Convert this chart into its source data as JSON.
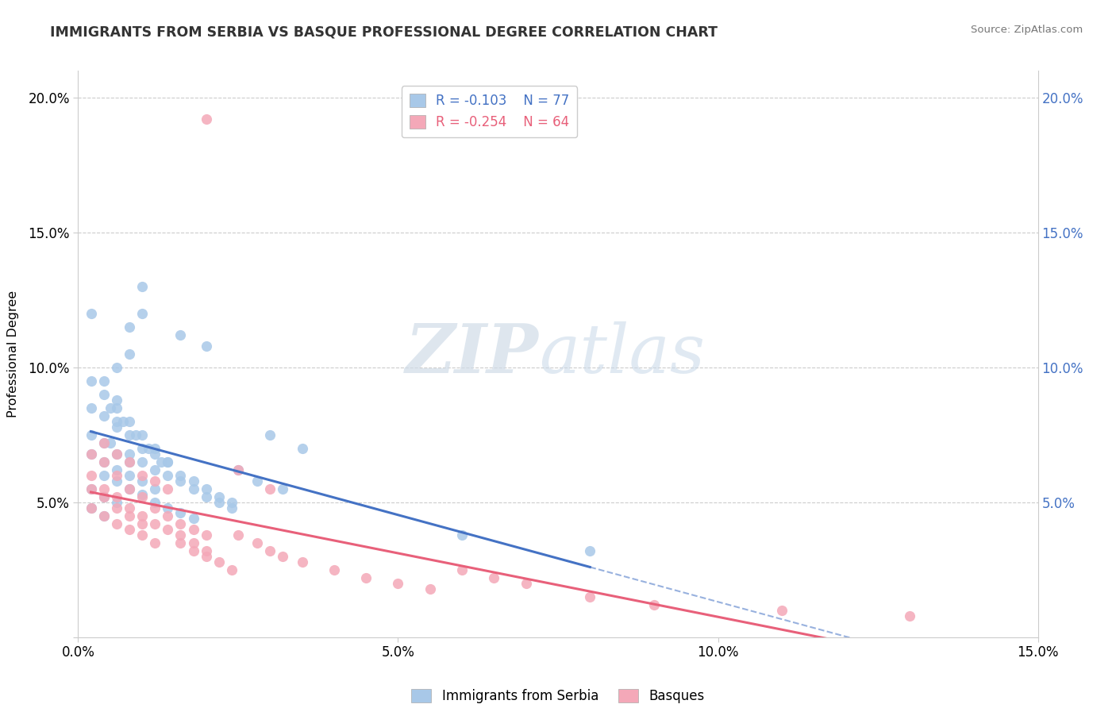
{
  "title": "IMMIGRANTS FROM SERBIA VS BASQUE PROFESSIONAL DEGREE CORRELATION CHART",
  "source": "Source: ZipAtlas.com",
  "ylabel": "Professional Degree",
  "legend_labels": [
    "Immigrants from Serbia",
    "Basques"
  ],
  "serbia_R": "-0.103",
  "serbia_N": "77",
  "basque_R": "-0.254",
  "basque_N": "64",
  "serbia_color": "#a8c8e8",
  "basque_color": "#f4a8b8",
  "serbia_line_color": "#4472c4",
  "basque_line_color": "#e8607a",
  "xlim": [
    0.0,
    0.15
  ],
  "ylim": [
    0.0,
    0.21
  ],
  "xtick_vals": [
    0.0,
    0.05,
    0.1,
    0.15
  ],
  "xtick_labels": [
    "0.0%",
    "5.0%",
    "10.0%",
    "15.0%"
  ],
  "ytick_vals": [
    0.0,
    0.05,
    0.1,
    0.15,
    0.2
  ],
  "ytick_labels_right": [
    "5.0%",
    "10.0%",
    "15.0%",
    "20.0%"
  ],
  "ytick_vals_right": [
    0.05,
    0.1,
    0.15,
    0.2
  ],
  "watermark_zip": "ZIP",
  "watermark_atlas": "atlas",
  "serbia_scatter_x": [
    0.005,
    0.008,
    0.01,
    0.012,
    0.014,
    0.016,
    0.018,
    0.02,
    0.022,
    0.024,
    0.006,
    0.008,
    0.01,
    0.012,
    0.014,
    0.016,
    0.018,
    0.02,
    0.022,
    0.024,
    0.004,
    0.006,
    0.008,
    0.01,
    0.012,
    0.014,
    0.004,
    0.006,
    0.008,
    0.01,
    0.012,
    0.014,
    0.016,
    0.018,
    0.002,
    0.004,
    0.006,
    0.008,
    0.01,
    0.012,
    0.002,
    0.004,
    0.006,
    0.008,
    0.002,
    0.004,
    0.006,
    0.002,
    0.004,
    0.002,
    0.002,
    0.002,
    0.004,
    0.004,
    0.006,
    0.006,
    0.006,
    0.008,
    0.008,
    0.01,
    0.01,
    0.016,
    0.02,
    0.03,
    0.035,
    0.005,
    0.007,
    0.009,
    0.011,
    0.013,
    0.06,
    0.08,
    0.025,
    0.028,
    0.032
  ],
  "serbia_scatter_y": [
    0.072,
    0.068,
    0.065,
    0.062,
    0.06,
    0.058,
    0.055,
    0.052,
    0.05,
    0.048,
    0.08,
    0.075,
    0.07,
    0.068,
    0.065,
    0.06,
    0.058,
    0.055,
    0.052,
    0.05,
    0.09,
    0.085,
    0.08,
    0.075,
    0.07,
    0.065,
    0.06,
    0.058,
    0.055,
    0.053,
    0.05,
    0.048,
    0.046,
    0.044,
    0.068,
    0.065,
    0.062,
    0.06,
    0.058,
    0.055,
    0.075,
    0.072,
    0.068,
    0.065,
    0.055,
    0.052,
    0.05,
    0.048,
    0.045,
    0.12,
    0.095,
    0.085,
    0.095,
    0.082,
    0.1,
    0.088,
    0.078,
    0.115,
    0.105,
    0.13,
    0.12,
    0.112,
    0.108,
    0.075,
    0.07,
    0.085,
    0.08,
    0.075,
    0.07,
    0.065,
    0.038,
    0.032,
    0.062,
    0.058,
    0.055
  ],
  "basque_scatter_x": [
    0.002,
    0.004,
    0.006,
    0.008,
    0.01,
    0.012,
    0.014,
    0.016,
    0.018,
    0.02,
    0.002,
    0.004,
    0.006,
    0.008,
    0.01,
    0.012,
    0.014,
    0.016,
    0.018,
    0.02,
    0.002,
    0.004,
    0.006,
    0.008,
    0.01,
    0.012,
    0.002,
    0.004,
    0.006,
    0.008,
    0.01,
    0.004,
    0.006,
    0.008,
    0.01,
    0.012,
    0.014,
    0.016,
    0.018,
    0.02,
    0.022,
    0.024,
    0.025,
    0.028,
    0.03,
    0.032,
    0.035,
    0.04,
    0.045,
    0.05,
    0.055,
    0.06,
    0.065,
    0.07,
    0.08,
    0.09,
    0.11,
    0.13,
    0.02,
    0.025,
    0.03
  ],
  "basque_scatter_y": [
    0.06,
    0.055,
    0.052,
    0.048,
    0.045,
    0.042,
    0.04,
    0.038,
    0.035,
    0.032,
    0.068,
    0.065,
    0.06,
    0.055,
    0.052,
    0.048,
    0.045,
    0.042,
    0.04,
    0.038,
    0.048,
    0.045,
    0.042,
    0.04,
    0.038,
    0.035,
    0.055,
    0.052,
    0.048,
    0.045,
    0.042,
    0.072,
    0.068,
    0.065,
    0.06,
    0.058,
    0.055,
    0.035,
    0.032,
    0.03,
    0.028,
    0.025,
    0.038,
    0.035,
    0.032,
    0.03,
    0.028,
    0.025,
    0.022,
    0.02,
    0.018,
    0.025,
    0.022,
    0.02,
    0.015,
    0.012,
    0.01,
    0.008,
    0.192,
    0.062,
    0.055
  ]
}
